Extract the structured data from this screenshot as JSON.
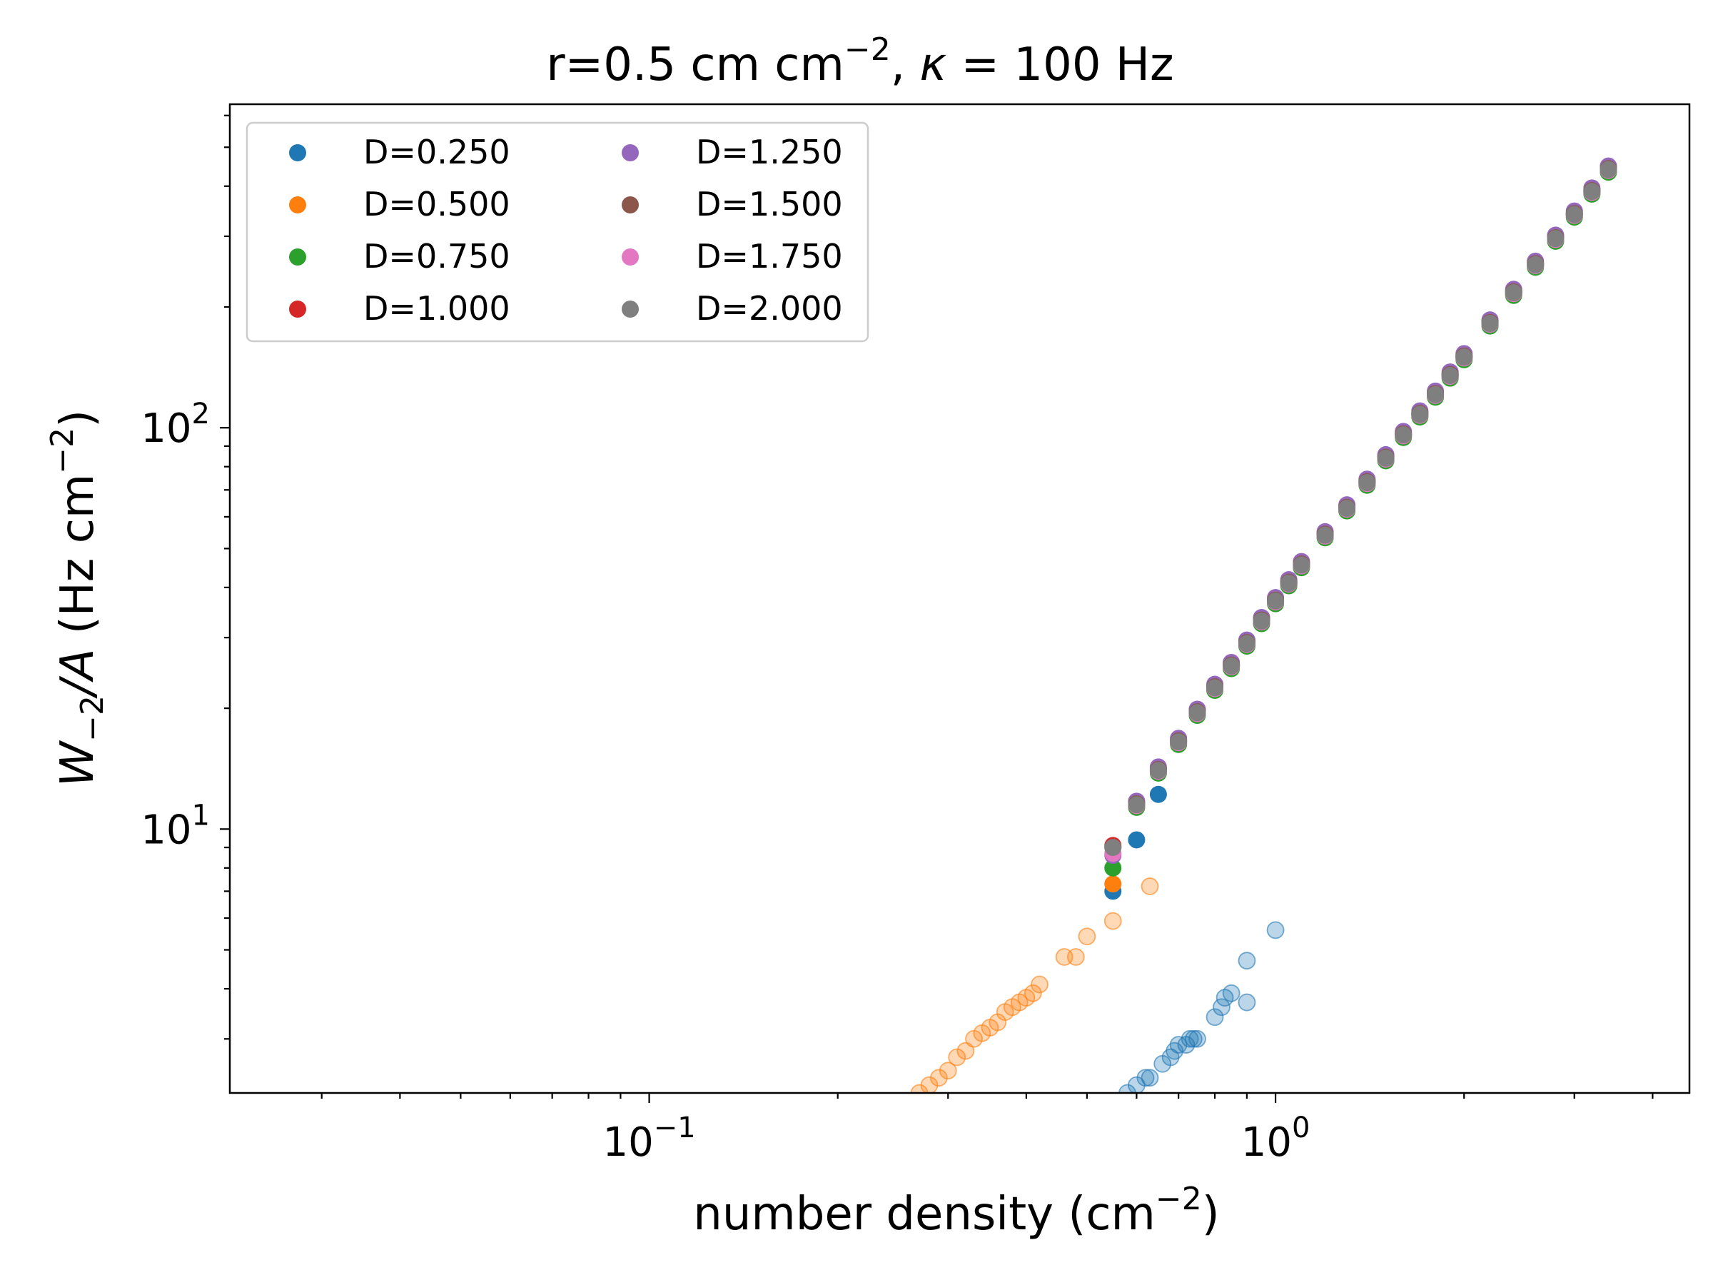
{
  "chart_data": {
    "type": "scatter",
    "title": "r=0.5 cm cm$^{-2}$, $\\kappa = 100$ Hz",
    "title_parts": {
      "main": "r=0.5 cm cm",
      "sup": "−2",
      "sep": ", ",
      "kappa": "κ",
      "rest": " = 100 Hz"
    },
    "xlabel": "number density (cm$^{-2}$)",
    "xlabel_parts": {
      "main": "number density (cm",
      "sup": "−2",
      "end": ")"
    },
    "ylabel": "$W_{-2}/A$ (Hz cm$^{-2}$)",
    "ylabel_parts": {
      "W": "W",
      "sub": "−2",
      "slashA": "/A",
      "mid": " (Hz cm",
      "sup": "−2",
      "end": ")"
    },
    "xscale": "log",
    "yscale": "log",
    "xlim": [
      0.0214,
      4.58
    ],
    "ylim": [
      2.2,
      640
    ],
    "grid": false,
    "legend": {
      "location": "upper left",
      "columns": 2
    },
    "x_tick_labels": [
      {
        "value": 0.1,
        "base": "10",
        "exp": "−1"
      },
      {
        "value": 1,
        "base": "10",
        "exp": "0"
      }
    ],
    "y_tick_labels": [
      {
        "value": 10,
        "base": "10",
        "exp": "1"
      },
      {
        "value": 100,
        "base": "10",
        "exp": "2"
      }
    ],
    "series": [
      {
        "name": "D=0.250",
        "color": "#1f77b4"
      },
      {
        "name": "D=0.500",
        "color": "#ff7f0e"
      },
      {
        "name": "D=0.750",
        "color": "#2ca02c"
      },
      {
        "name": "D=1.000",
        "color": "#d62728"
      },
      {
        "name": "D=1.250",
        "color": "#9467bd"
      },
      {
        "name": "D=1.500",
        "color": "#8c564b"
      },
      {
        "name": "D=1.750",
        "color": "#e377c2"
      },
      {
        "name": "D=2.000",
        "color": "#7f7f7f"
      }
    ],
    "main_curve": {
      "x": [
        0.55,
        0.6,
        0.65,
        0.7,
        0.75,
        0.8,
        0.85,
        0.9,
        0.95,
        1.0,
        1.05,
        1.1,
        1.2,
        1.3,
        1.4,
        1.5,
        1.6,
        1.7,
        1.8,
        1.9,
        2.0,
        2.2,
        2.4,
        2.6,
        2.8,
        3.0,
        3.2,
        3.4
      ],
      "y": [
        9.0,
        11.5,
        14.0,
        16.5,
        19.5,
        22.5,
        25.5,
        29.0,
        33.0,
        37.0,
        41.0,
        45.5,
        54.0,
        63.0,
        73.0,
        84.0,
        96.0,
        108.0,
        121.0,
        135.0,
        150.0,
        182.0,
        217.0,
        255.0,
        296.0,
        340.0,
        388.0,
        440.0
      ]
    },
    "low_density_points": [
      {
        "series": "D=0.250",
        "x": [
          0.58,
          0.6,
          0.62,
          0.63,
          0.66,
          0.68,
          0.69,
          0.7,
          0.72,
          0.73,
          0.74,
          0.75,
          0.8,
          0.82,
          0.83,
          0.85,
          0.9,
          0.9,
          1.0
        ],
        "y": [
          2.2,
          2.3,
          2.4,
          2.4,
          2.6,
          2.7,
          2.8,
          2.9,
          2.9,
          3.0,
          3.0,
          3.0,
          3.4,
          3.6,
          3.8,
          3.9,
          3.7,
          4.7,
          5.6
        ]
      },
      {
        "series": "D=0.500",
        "x": [
          0.27,
          0.28,
          0.29,
          0.3,
          0.31,
          0.32,
          0.33,
          0.34,
          0.35,
          0.36,
          0.37,
          0.38,
          0.39,
          0.4,
          0.41,
          0.42,
          0.46,
          0.48,
          0.5,
          0.55,
          0.63
        ],
        "y": [
          2.2,
          2.3,
          2.4,
          2.5,
          2.7,
          2.8,
          3.0,
          3.1,
          3.2,
          3.3,
          3.5,
          3.6,
          3.7,
          3.8,
          3.9,
          4.1,
          4.8,
          4.8,
          5.4,
          5.9,
          7.2
        ]
      }
    ],
    "first_point_values": {
      "D=0.250": 7.0,
      "D=0.500": 7.3,
      "D=0.750": 8.0,
      "D=1.000": 9.1,
      "D=1.250": 8.6,
      "D=1.500": 9.0,
      "D=1.750": 8.7,
      "D=2.000": 9.0
    }
  }
}
